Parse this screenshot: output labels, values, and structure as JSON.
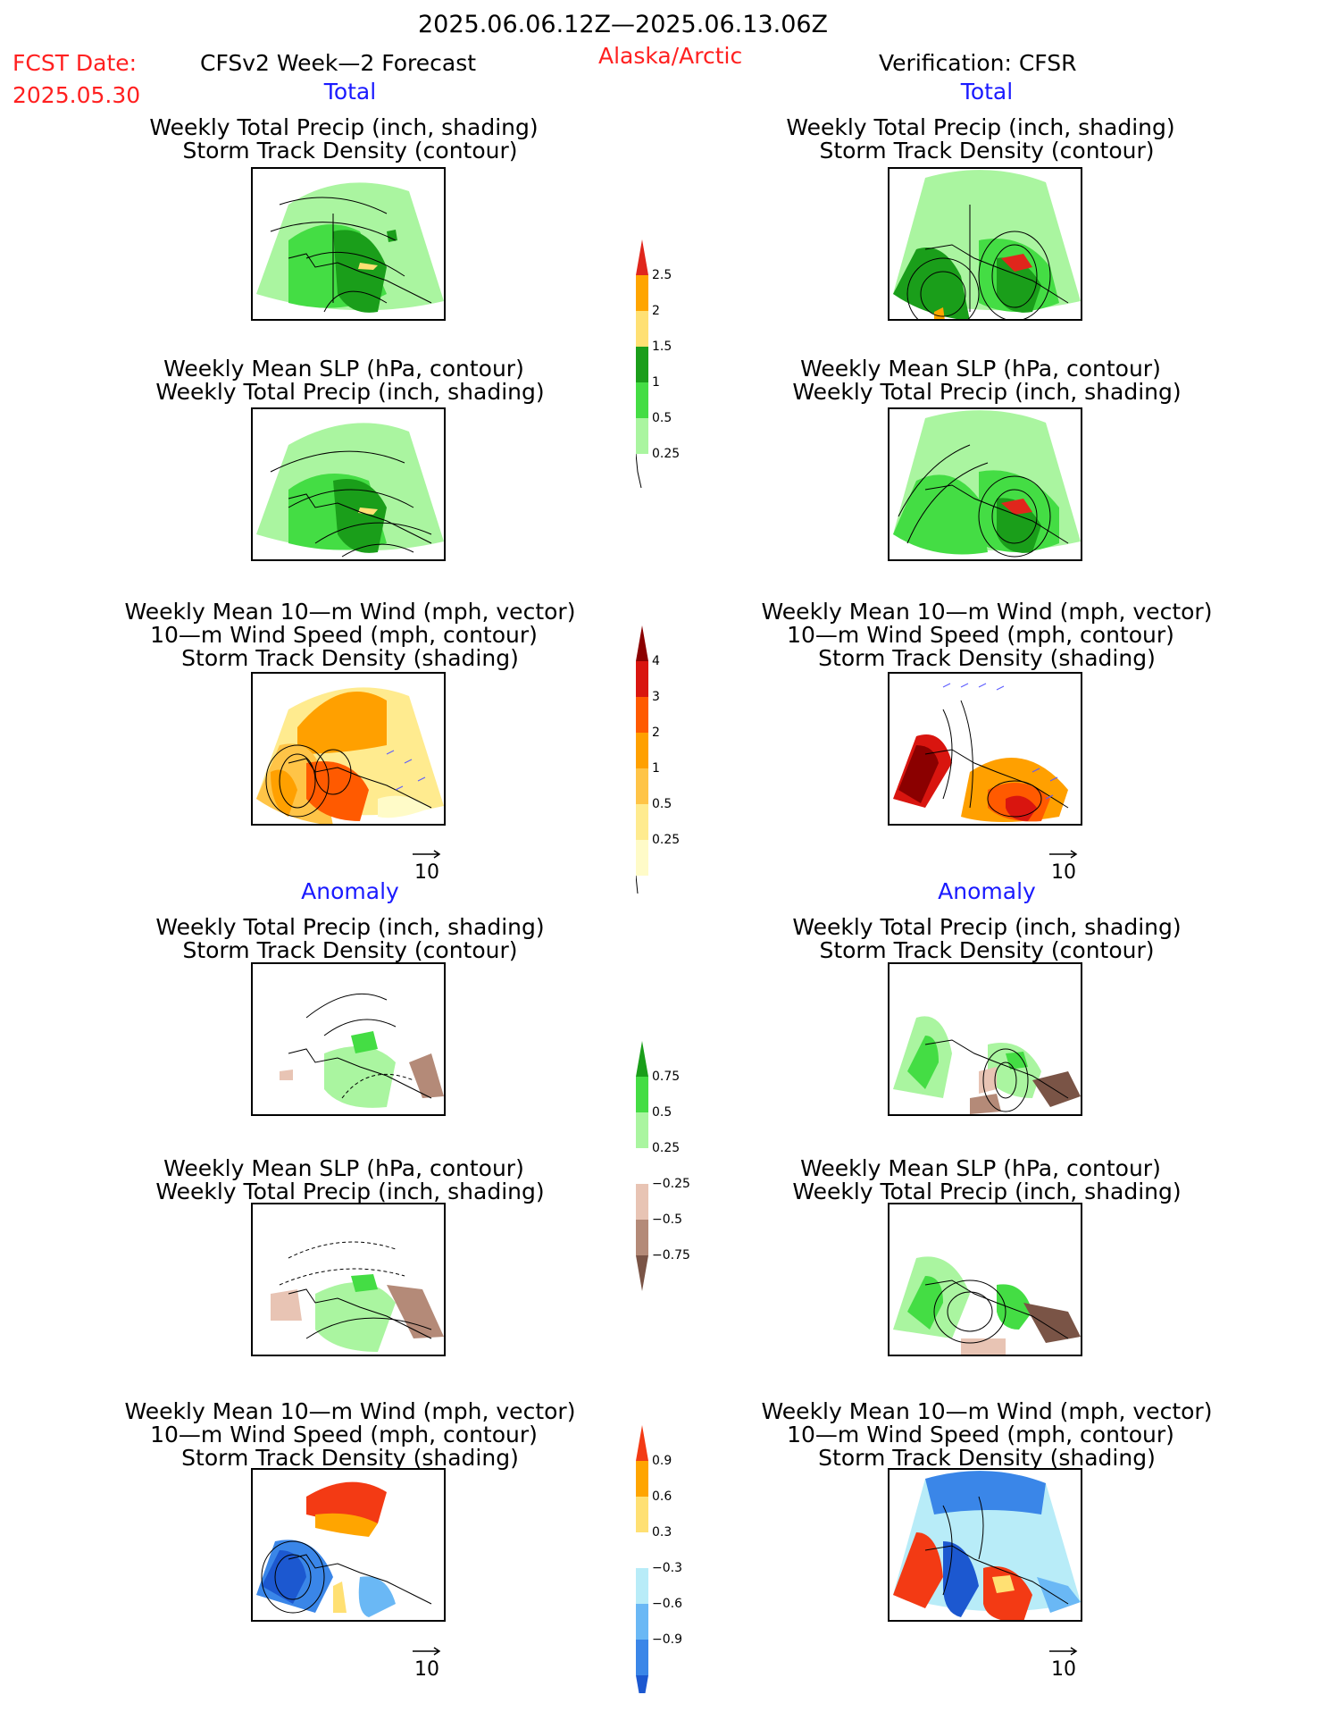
{
  "header": {
    "date_range": "2025.06.06.12Z—2025.06.13.06Z",
    "fcst_label": "FCST Date:",
    "fcst_date": "2025.05.30",
    "model": "CFSv2 Week—2 Forecast",
    "region": "Alaska/Arctic",
    "verification": "Verification: CFSR"
  },
  "sections": {
    "total": "Total",
    "anomaly": "Anomaly"
  },
  "panel_titles": {
    "precip_storm": [
      "Weekly Total Precip (inch, shading)",
      "Storm Track Density (contour)"
    ],
    "slp_precip": [
      "Weekly Mean SLP (hPa, contour)",
      "Weekly Total Precip (inch, shading)"
    ],
    "wind_storm": [
      "Weekly Mean 10—m Wind (mph, vector)",
      "10—m Wind Speed (mph, contour)",
      "Storm Track Density (shading)"
    ]
  },
  "vector_reference": "10",
  "colorbars": [
    {
      "name": "total-precip",
      "ticks": [
        "2.5",
        "2",
        "1.5",
        "1",
        "0.5",
        "0.25"
      ],
      "colors": [
        "#e0261c",
        "#ffa500",
        "#ffe073",
        "#1a9e1a",
        "#44dd44",
        "#aaf5a0"
      ]
    },
    {
      "name": "total-storm-density",
      "ticks": [
        "4",
        "3",
        "2",
        "1",
        "0.5",
        "0.25"
      ],
      "colors": [
        "#8b0000",
        "#d9150f",
        "#ff5a00",
        "#ffa000",
        "#ffc447",
        "#ffeb8f",
        "#fffbc8"
      ]
    },
    {
      "name": "anomaly-precip",
      "ticks": [
        "0.75",
        "0.5",
        "0.25",
        "−0.25",
        "−0.5",
        "−0.75"
      ],
      "colors": [
        "#1a9e1a",
        "#44dd44",
        "#aaf5a0",
        "#ffffff",
        "#e8c4b4",
        "#b48a78",
        "#7a5446"
      ]
    },
    {
      "name": "anomaly-storm-density",
      "ticks": [
        "0.9",
        "0.6",
        "0.3",
        "−0.3",
        "−0.6",
        "−0.9"
      ],
      "colors": [
        "#f33a14",
        "#ffa500",
        "#ffe073",
        "#ffffff",
        "#b8ecf8",
        "#6ab8f5",
        "#3a86e8",
        "#1c58d0"
      ]
    }
  ]
}
